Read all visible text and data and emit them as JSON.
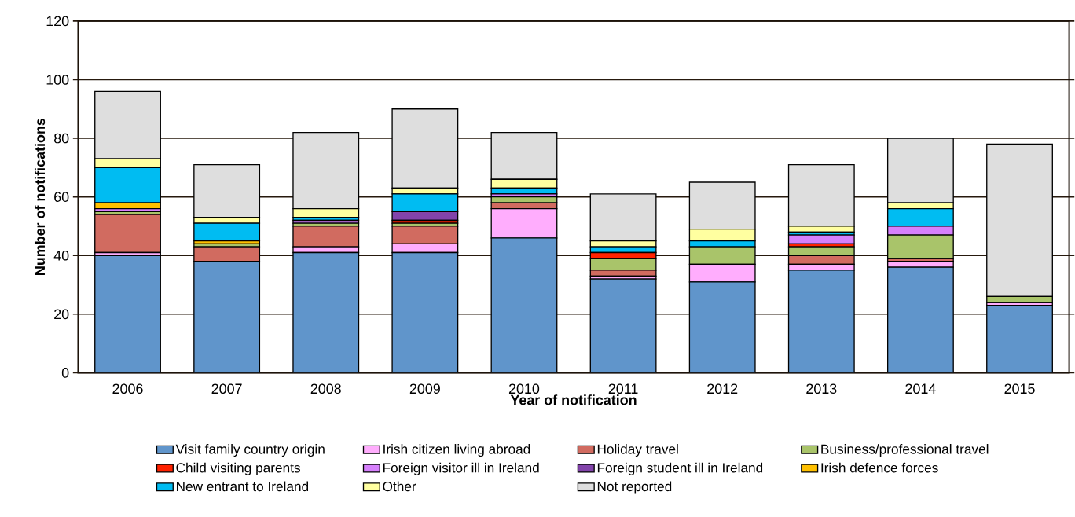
{
  "chart_data": {
    "type": "bar",
    "stacked": true,
    "xlabel": "Year of notification",
    "ylabel": "Number of notifications",
    "categories": [
      "2006",
      "2007",
      "2008",
      "2009",
      "2010",
      "2011",
      "2012",
      "2013",
      "2014",
      "2015"
    ],
    "ylim": [
      0,
      120
    ],
    "yticks": [
      0,
      20,
      40,
      60,
      80,
      100,
      120
    ],
    "grid": "y",
    "legend": "bottom",
    "series": [
      {
        "name": "Visit family country origin",
        "color": "#6095cb",
        "values": [
          40,
          38,
          41,
          41,
          46,
          32,
          31,
          35,
          36,
          23
        ]
      },
      {
        "name": "Irish citizen living abroad",
        "color": "#ffadfd",
        "values": [
          1,
          0,
          2,
          3,
          10,
          1,
          6,
          2,
          2,
          1
        ]
      },
      {
        "name": "Holiday travel",
        "color": "#d16b60",
        "values": [
          13,
          5,
          7,
          6,
          2,
          2,
          0,
          3,
          1,
          0
        ]
      },
      {
        "name": "Business/professional travel",
        "color": "#a9c46a",
        "values": [
          1,
          1,
          1,
          1,
          2,
          4,
          6,
          3,
          8,
          2
        ]
      },
      {
        "name": "Child visiting parents",
        "color": "#ff2200",
        "values": [
          0,
          0,
          0,
          1,
          0,
          2,
          0,
          1,
          0,
          0
        ]
      },
      {
        "name": "Foreign visitor ill in Ireland",
        "color": "#d680fc",
        "values": [
          1,
          0,
          1,
          0,
          1,
          0,
          0,
          3,
          3,
          0
        ]
      },
      {
        "name": "Foreign student ill in Ireland",
        "color": "#8243aa",
        "values": [
          0,
          0,
          0,
          3,
          0,
          0,
          0,
          0,
          0,
          0
        ]
      },
      {
        "name": "Irish defence forces",
        "color": "#ffc000",
        "values": [
          2,
          1,
          0,
          0,
          0,
          0,
          0,
          0,
          0,
          0
        ]
      },
      {
        "name": "New entrant to Ireland",
        "color": "#00bcf2",
        "values": [
          12,
          6,
          1,
          6,
          2,
          2,
          2,
          1,
          6,
          0
        ]
      },
      {
        "name": "Other",
        "color": "#ffffa0",
        "values": [
          3,
          2,
          3,
          2,
          3,
          2,
          4,
          2,
          2,
          0
        ]
      },
      {
        "name": "Not reported",
        "color": "#dedede",
        "values": [
          23,
          18,
          26,
          27,
          16,
          16,
          16,
          21,
          22,
          52
        ]
      }
    ]
  }
}
